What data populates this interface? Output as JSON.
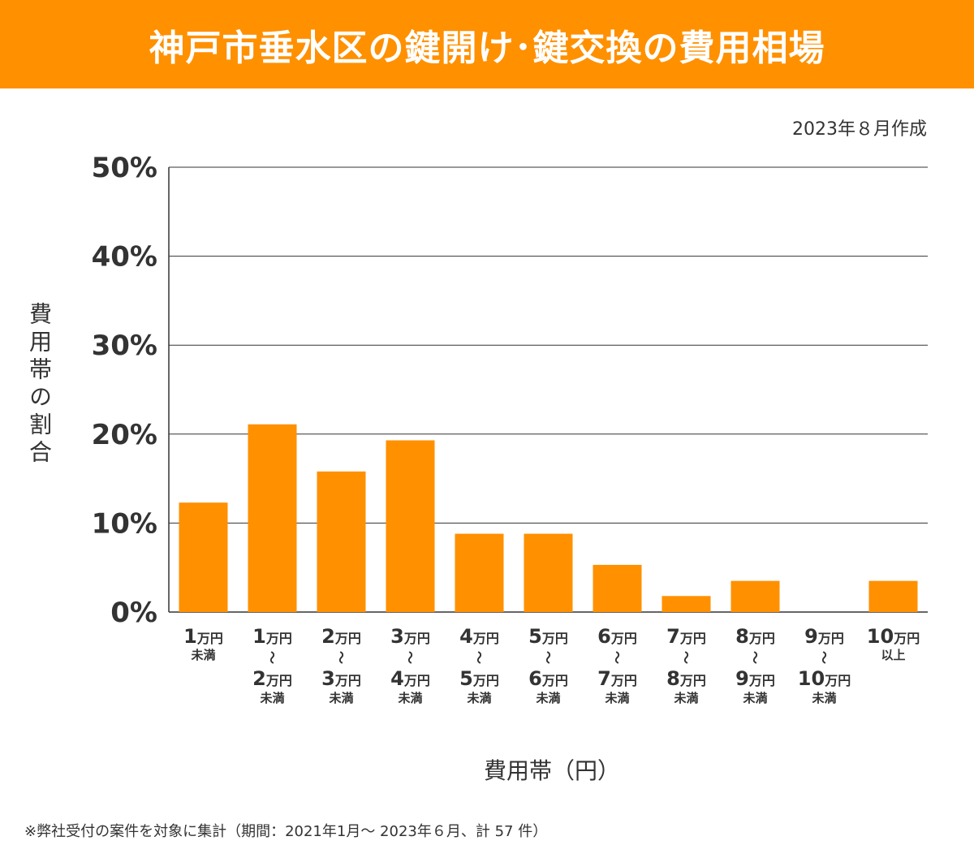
{
  "header": {
    "title": "神戸市垂水区の鍵開け･鍵交換の費用相場"
  },
  "created": "2023年８月作成",
  "footnote": "※弊社受付の案件を対象に集計（期間：2021年1月～ 2023年６月、計 57 件）",
  "chart_data": {
    "type": "bar",
    "title": "神戸市垂水区の鍵開け･鍵交換の費用相場",
    "xlabel": "費用帯（円）",
    "ylabel": "費用帯の割合",
    "ylim": [
      0,
      50
    ],
    "yticks": [
      "0%",
      "10%",
      "20%",
      "30%",
      "40%",
      "50%"
    ],
    "grid": true,
    "bar_color": "#ff9000",
    "categories": [
      {
        "from": "1",
        "unit": "万円",
        "tilde": "",
        "to": "",
        "note": "未満"
      },
      {
        "from": "1",
        "unit": "万円",
        "tilde": "〜",
        "to": "2",
        "note": "未満"
      },
      {
        "from": "2",
        "unit": "万円",
        "tilde": "〜",
        "to": "3",
        "note": "未満"
      },
      {
        "from": "3",
        "unit": "万円",
        "tilde": "〜",
        "to": "4",
        "note": "未満"
      },
      {
        "from": "4",
        "unit": "万円",
        "tilde": "〜",
        "to": "5",
        "note": "未満"
      },
      {
        "from": "5",
        "unit": "万円",
        "tilde": "〜",
        "to": "6",
        "note": "未満"
      },
      {
        "from": "6",
        "unit": "万円",
        "tilde": "〜",
        "to": "7",
        "note": "未満"
      },
      {
        "from": "7",
        "unit": "万円",
        "tilde": "〜",
        "to": "8",
        "note": "未満"
      },
      {
        "from": "8",
        "unit": "万円",
        "tilde": "〜",
        "to": "9",
        "note": "未満"
      },
      {
        "from": "9",
        "unit": "万円",
        "tilde": "〜",
        "to": "10",
        "note": "未満"
      },
      {
        "from": "10",
        "unit": "万円",
        "tilde": "",
        "to": "",
        "note": "以上"
      }
    ],
    "values": [
      12.3,
      21.1,
      15.8,
      19.3,
      8.8,
      8.8,
      5.3,
      1.8,
      3.5,
      0,
      3.5
    ]
  }
}
